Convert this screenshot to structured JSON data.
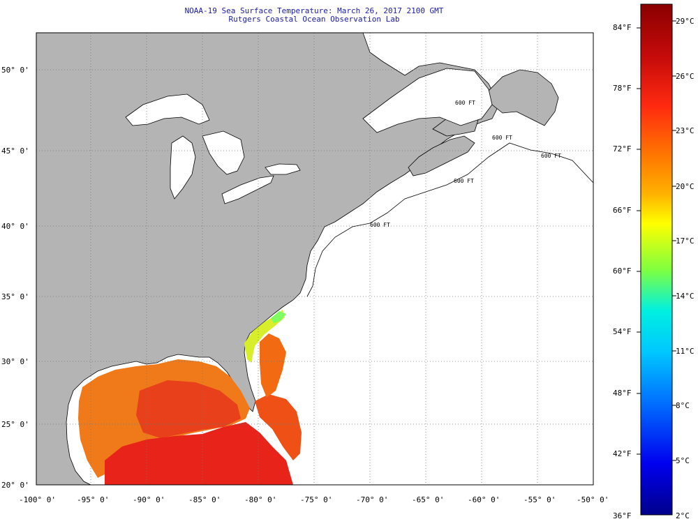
{
  "title": {
    "line1": "NOAA-19 Sea Surface Temperature:  March 26, 2017 2100 GMT",
    "line2": "Rutgers Coastal Ocean Observation Lab"
  },
  "map": {
    "lat_labels": [
      "50° 0'",
      "45° 0'",
      "40° 0'",
      "35° 0'",
      "30° 0'",
      "25° 0'",
      "20° 0'"
    ],
    "lon_labels": [
      "-100° 0'",
      "-95° 0'",
      "-90° 0'",
      "-85° 0'",
      "-80° 0'",
      "-75° 0'",
      "-70° 0'",
      "-65° 0'",
      "-60° 0'",
      "-55° 0'",
      "-50° 0'"
    ],
    "depth_contour_labels": [
      "600 FT",
      "600 FT",
      "600 FT",
      "600 FT",
      "600 FT"
    ],
    "colors": {
      "land": "#b4b4b4",
      "water_no_data": "#ffffff",
      "gridline": "#888888",
      "title_text": "#1a1aa6"
    }
  },
  "colorbar": {
    "fahrenheit_labels": [
      "84°F",
      "78°F",
      "72°F",
      "66°F",
      "60°F",
      "54°F",
      "48°F",
      "42°F",
      "36°F"
    ],
    "celsius_labels": [
      "29°C",
      "26°C",
      "23°C",
      "20°C",
      "17°C",
      "14°C",
      "11°C",
      "8°C",
      "5°C",
      "2°C"
    ],
    "range_c": [
      2,
      29
    ],
    "range_f": [
      36,
      84
    ],
    "colors_top_to_bottom": [
      "#8b0000",
      "#e11b10",
      "#ff6a00",
      "#ffa500",
      "#ffff00",
      "#7fff3f",
      "#00ffff",
      "#0090ff",
      "#0000ff",
      "#00008b"
    ]
  }
}
